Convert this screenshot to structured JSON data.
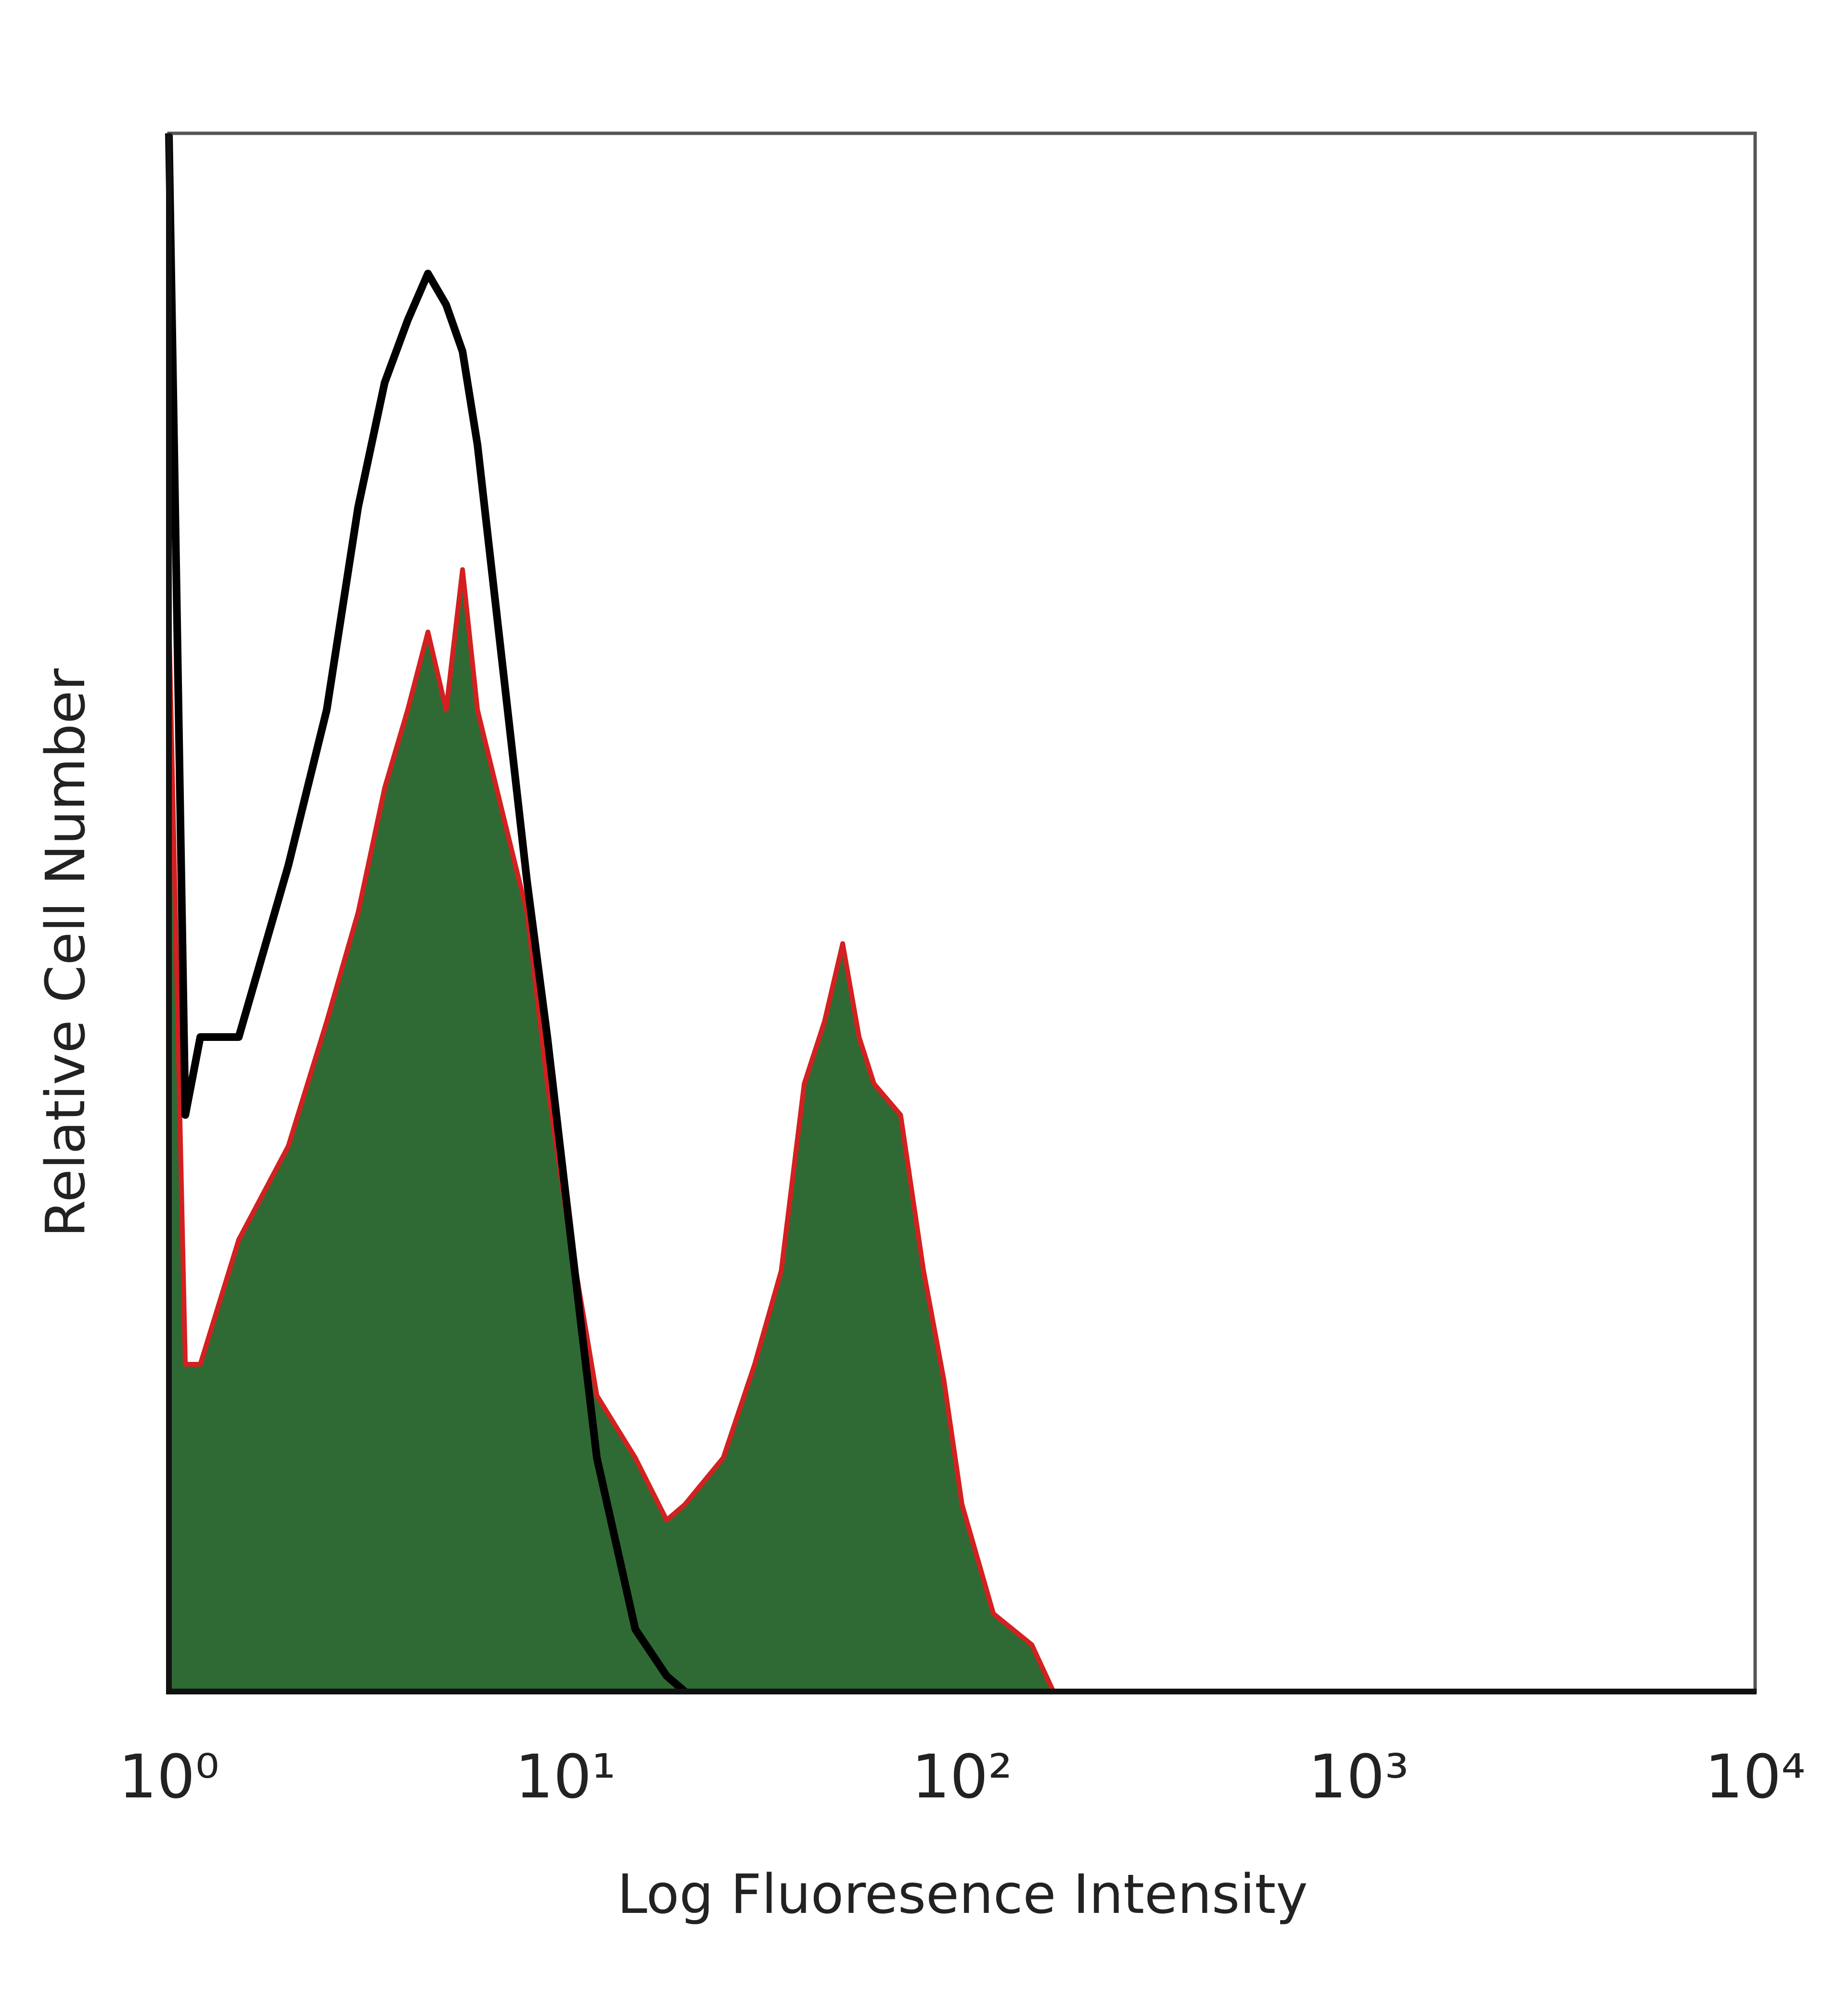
{
  "chart_data": {
    "type": "histogram-overlay",
    "xlabel": "Log Fluoresence Intensity",
    "ylabel": "Relative Cell Number",
    "xscale": "log",
    "xlim": [
      1,
      10000
    ],
    "ylim": [
      0,
      100
    ],
    "xticks": [
      {
        "value": 1,
        "label": "10⁰"
      },
      {
        "value": 10,
        "label": "10¹"
      },
      {
        "value": 100,
        "label": "10²"
      },
      {
        "value": 1000,
        "label": "10³"
      },
      {
        "value": 10000,
        "label": "10⁴"
      }
    ],
    "series": [
      {
        "color": "#000000",
        "fill": null,
        "x": [
          1,
          1.1,
          1.2,
          1.5,
          2,
          2.5,
          3,
          3.5,
          4,
          4.5,
          5,
          5.5,
          6,
          7,
          8,
          9,
          10,
          12,
          15,
          18,
          20
        ],
        "values": [
          100,
          37,
          42,
          42,
          53,
          63,
          76,
          84,
          88,
          91,
          89,
          86,
          80,
          65,
          52,
          42,
          32,
          15,
          4,
          1,
          0
        ]
      },
      {
        "color": "#d42020",
        "fill": "#2f6a34",
        "x": [
          1,
          1.1,
          1.2,
          1.5,
          2,
          2.5,
          3,
          3.5,
          4,
          4.5,
          5,
          5.5,
          6,
          7,
          8,
          9,
          10,
          12,
          15,
          18,
          20,
          25,
          30,
          35,
          40,
          45,
          50,
          55,
          60,
          70,
          80,
          90,
          100,
          120,
          150,
          170
        ],
        "values": [
          69,
          21,
          21,
          29,
          35,
          43,
          50,
          58,
          63,
          68,
          63,
          72,
          63,
          56,
          50,
          39,
          31,
          19,
          15,
          11,
          12,
          15,
          21,
          27,
          39,
          43,
          48,
          42,
          39,
          37,
          27,
          20,
          12,
          5,
          3,
          0
        ]
      }
    ]
  }
}
